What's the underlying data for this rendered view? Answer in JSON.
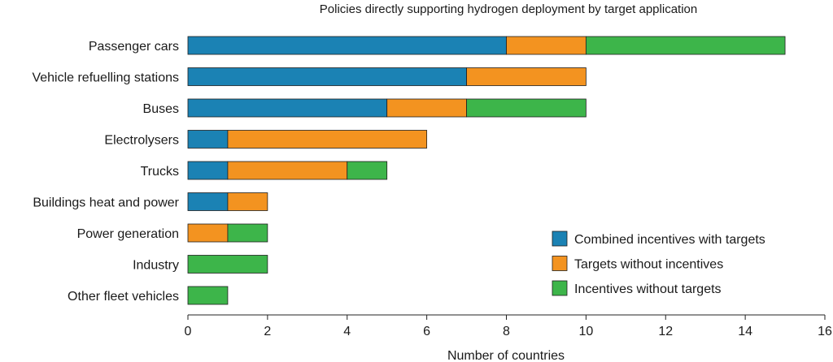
{
  "chart_data": {
    "type": "bar",
    "orientation": "horizontal",
    "stacked": true,
    "title": "Policies directly supporting hydrogen deployment by target application",
    "xlabel": "Number of countries",
    "ylabel": "",
    "xlim": [
      0,
      16
    ],
    "xticks": [
      0,
      2,
      4,
      6,
      8,
      10,
      12,
      14,
      16
    ],
    "grid": false,
    "legend_position": "bottom-right",
    "categories": [
      "Passenger cars",
      "Vehicle refuelling stations",
      "Buses",
      "Electrolysers",
      "Trucks",
      "Buildings heat and power",
      "Power generation",
      "Industry",
      "Other fleet vehicles"
    ],
    "series": [
      {
        "name": "Combined incentives with targets",
        "color": "#1b82b4",
        "values": [
          8,
          7,
          5,
          1,
          1,
          1,
          0,
          0,
          0
        ]
      },
      {
        "name": "Targets without incentives",
        "color": "#f39320",
        "values": [
          2,
          3,
          2,
          5,
          3,
          1,
          1,
          0,
          0
        ]
      },
      {
        "name": "Incentives without targets",
        "color": "#3db54a",
        "values": [
          5,
          0,
          3,
          0,
          1,
          0,
          1,
          2,
          1
        ]
      }
    ]
  }
}
